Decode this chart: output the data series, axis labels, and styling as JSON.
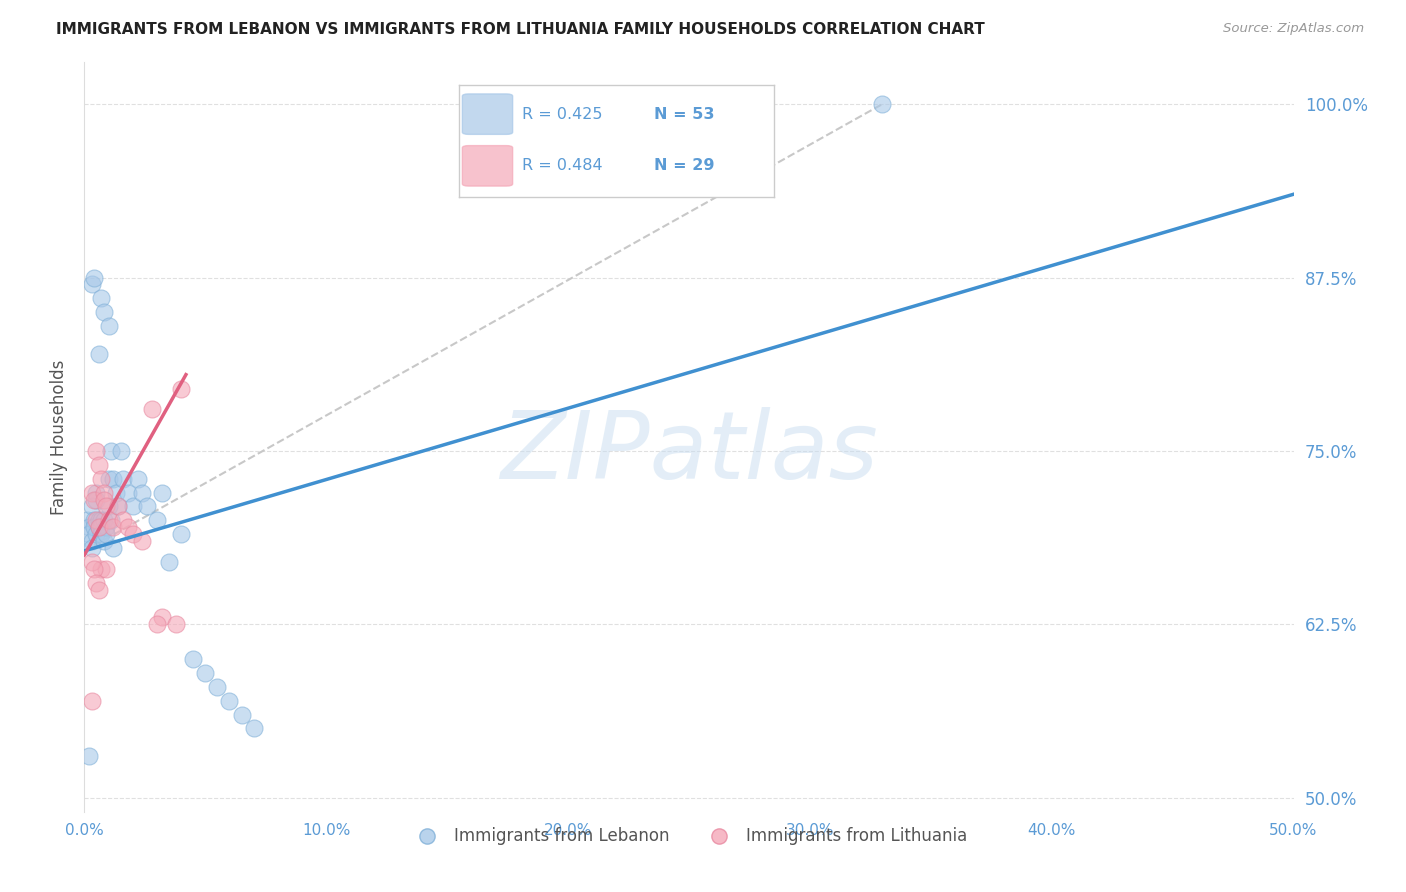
{
  "title": "IMMIGRANTS FROM LEBANON VS IMMIGRANTS FROM LITHUANIA FAMILY HOUSEHOLDS CORRELATION CHART",
  "source": "Source: ZipAtlas.com",
  "ylabel": "Family Households",
  "ytick_labels": [
    "100.0%",
    "87.5%",
    "75.0%",
    "62.5%",
    "50.0%"
  ],
  "ytick_values": [
    1.0,
    0.875,
    0.75,
    0.625,
    0.5
  ],
  "xtick_values": [
    0.0,
    0.1,
    0.2,
    0.3,
    0.4,
    0.5
  ],
  "xtick_labels": [
    "0.0%",
    "10.0%",
    "20.0%",
    "30.0%",
    "40.0%",
    "50.0%"
  ],
  "xlim": [
    0.0,
    0.5
  ],
  "ylim": [
    0.49,
    1.03
  ],
  "watermark": "ZIPatlas",
  "legend_entries": [
    {
      "label": "Immigrants from Lebanon",
      "R": "0.425",
      "N": "53",
      "color": "#a8c8e8"
    },
    {
      "label": "Immigrants from Lithuania",
      "R": "0.484",
      "N": "29",
      "color": "#f4a8b8"
    }
  ],
  "lebanon_scatter_x": [
    0.001,
    0.002,
    0.002,
    0.003,
    0.003,
    0.003,
    0.004,
    0.004,
    0.005,
    0.005,
    0.005,
    0.006,
    0.006,
    0.007,
    0.007,
    0.007,
    0.008,
    0.008,
    0.009,
    0.009,
    0.01,
    0.01,
    0.011,
    0.011,
    0.012,
    0.013,
    0.014,
    0.015,
    0.016,
    0.018,
    0.02,
    0.022,
    0.024,
    0.026,
    0.03,
    0.032,
    0.035,
    0.04,
    0.045,
    0.05,
    0.055,
    0.06,
    0.065,
    0.07,
    0.003,
    0.004,
    0.006,
    0.007,
    0.008,
    0.01,
    0.012,
    0.33,
    0.002
  ],
  "lebanon_scatter_y": [
    0.7,
    0.695,
    0.69,
    0.685,
    0.71,
    0.68,
    0.7,
    0.695,
    0.69,
    0.72,
    0.715,
    0.7,
    0.695,
    0.7,
    0.695,
    0.69,
    0.685,
    0.7,
    0.695,
    0.69,
    0.73,
    0.71,
    0.7,
    0.75,
    0.73,
    0.72,
    0.71,
    0.75,
    0.73,
    0.72,
    0.71,
    0.73,
    0.72,
    0.71,
    0.7,
    0.72,
    0.67,
    0.69,
    0.6,
    0.59,
    0.58,
    0.57,
    0.56,
    0.55,
    0.87,
    0.875,
    0.82,
    0.86,
    0.85,
    0.84,
    0.68,
    1.0,
    0.53
  ],
  "lithuania_scatter_x": [
    0.003,
    0.004,
    0.005,
    0.005,
    0.006,
    0.006,
    0.007,
    0.007,
    0.008,
    0.008,
    0.009,
    0.009,
    0.01,
    0.012,
    0.014,
    0.016,
    0.018,
    0.02,
    0.024,
    0.028,
    0.032,
    0.038,
    0.04,
    0.003,
    0.004,
    0.005,
    0.006,
    0.03,
    0.003
  ],
  "lithuania_scatter_y": [
    0.72,
    0.715,
    0.75,
    0.7,
    0.74,
    0.695,
    0.73,
    0.665,
    0.72,
    0.715,
    0.71,
    0.665,
    0.7,
    0.695,
    0.71,
    0.7,
    0.695,
    0.69,
    0.685,
    0.78,
    0.63,
    0.625,
    0.795,
    0.67,
    0.665,
    0.655,
    0.65,
    0.625,
    0.57
  ],
  "lebanon_line_x": [
    0.0,
    0.5
  ],
  "lebanon_line_y": [
    0.678,
    0.935
  ],
  "lithuania_line_x": [
    0.0,
    0.042
  ],
  "lithuania_line_y": [
    0.675,
    0.805
  ],
  "dashed_line_x": [
    0.0,
    0.33
  ],
  "dashed_line_y": [
    0.678,
    1.0
  ],
  "lebanon_color": "#a8c8e8",
  "lebanon_edge_color": "#80b0d8",
  "lithuania_color": "#f4a8b8",
  "lithuania_edge_color": "#e888a0",
  "lebanon_line_color": "#4090d0",
  "lithuania_line_color": "#e06080",
  "dashed_color": "#c8c8c8",
  "tick_color": "#5b9bd5",
  "grid_color": "#e0e0e0",
  "background_color": "#ffffff"
}
